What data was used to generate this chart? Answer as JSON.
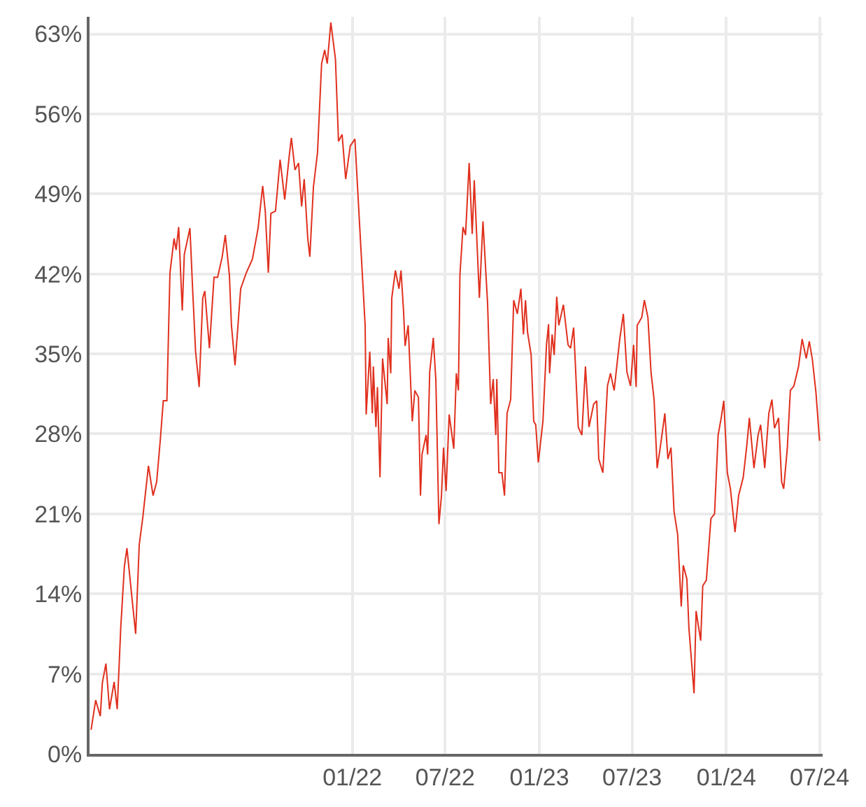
{
  "chart_data": {
    "type": "line",
    "x": [
      "2020-08-09",
      "2020-08-18",
      "2020-08-27",
      "2020-08-31",
      "2020-09-07",
      "2020-09-14",
      "2020-09-23",
      "2020-09-29",
      "2020-10-06",
      "2020-10-13",
      "2020-10-18",
      "2020-10-27",
      "2020-11-04",
      "2020-11-11",
      "2020-11-18",
      "2020-11-29",
      "2020-12-08",
      "2020-12-15",
      "2020-12-22",
      "2020-12-28",
      "2021-01-04",
      "2021-01-10",
      "2021-01-18",
      "2021-01-22",
      "2021-01-27",
      "2021-02-03",
      "2021-02-07",
      "2021-02-18",
      "2021-02-23",
      "2021-03-01",
      "2021-03-08",
      "2021-03-15",
      "2021-03-19",
      "2021-03-28",
      "2021-04-06",
      "2021-04-13",
      "2021-04-22",
      "2021-04-28",
      "2021-05-06",
      "2021-05-10",
      "2021-05-17",
      "2021-05-28",
      "2021-06-08",
      "2021-06-20",
      "2021-07-01",
      "2021-07-10",
      "2021-07-15",
      "2021-07-21",
      "2021-07-26",
      "2021-08-04",
      "2021-08-13",
      "2021-08-22",
      "2021-08-31",
      "2021-09-04",
      "2021-09-11",
      "2021-09-18",
      "2021-09-24",
      "2021-09-29",
      "2021-10-06",
      "2021-10-10",
      "2021-10-17",
      "2021-10-25",
      "2021-11-02",
      "2021-11-08",
      "2021-11-13",
      "2021-11-20",
      "2021-11-29",
      "2021-12-05",
      "2021-12-12",
      "2021-12-19",
      "2021-12-28",
      "2022-01-06",
      "2022-01-17",
      "2022-01-26",
      "2022-01-28",
      "2022-02-04",
      "2022-02-09",
      "2022-02-11",
      "2022-02-16",
      "2022-02-19",
      "2022-02-24",
      "2022-03-01",
      "2022-03-10",
      "2022-03-12",
      "2022-03-17",
      "2022-03-19",
      "2022-03-26",
      "2022-04-02",
      "2022-04-06",
      "2022-04-11",
      "2022-04-14",
      "2022-04-20",
      "2022-04-28",
      "2022-05-03",
      "2022-05-10",
      "2022-05-14",
      "2022-05-17",
      "2022-05-25",
      "2022-05-28",
      "2022-06-01",
      "2022-06-08",
      "2022-06-13",
      "2022-06-19",
      "2022-06-24",
      "2022-06-28",
      "2022-07-03",
      "2022-07-09",
      "2022-07-18",
      "2022-07-23",
      "2022-07-27",
      "2022-07-30",
      "2022-08-05",
      "2022-08-10",
      "2022-08-17",
      "2022-08-23",
      "2022-08-27",
      "2022-09-06",
      "2022-09-13",
      "2022-09-22",
      "2022-09-28",
      "2022-10-03",
      "2022-10-08",
      "2022-10-10",
      "2022-10-14",
      "2022-10-20",
      "2022-10-25",
      "2022-10-30",
      "2022-11-06",
      "2022-11-12",
      "2022-11-19",
      "2022-11-26",
      "2022-12-01",
      "2022-12-05",
      "2022-12-09",
      "2022-12-16",
      "2022-12-21",
      "2022-12-25",
      "2022-12-30",
      "2023-01-08",
      "2023-01-15",
      "2023-01-19",
      "2023-01-21",
      "2023-01-26",
      "2023-01-30",
      "2023-02-04",
      "2023-02-08",
      "2023-02-17",
      "2023-02-26",
      "2023-03-03",
      "2023-03-09",
      "2023-03-18",
      "2023-03-25",
      "2023-04-01",
      "2023-04-08",
      "2023-04-17",
      "2023-04-23",
      "2023-04-27",
      "2023-05-05",
      "2023-05-14",
      "2023-05-20",
      "2023-05-27",
      "2023-06-07",
      "2023-06-14",
      "2023-06-21",
      "2023-06-28",
      "2023-07-04",
      "2023-07-09",
      "2023-07-11",
      "2023-07-20",
      "2023-07-25",
      "2023-08-01",
      "2023-08-07",
      "2023-08-13",
      "2023-08-19",
      "2023-08-25",
      "2023-09-03",
      "2023-09-09",
      "2023-09-15",
      "2023-09-21",
      "2023-09-28",
      "2023-10-05",
      "2023-10-09",
      "2023-10-16",
      "2023-10-20",
      "2023-10-30",
      "2023-11-03",
      "2023-11-12",
      "2023-11-16",
      "2023-11-23",
      "2023-12-02",
      "2023-12-09",
      "2023-12-16",
      "2023-12-22",
      "2023-12-27",
      "2024-01-03",
      "2024-01-09",
      "2024-01-18",
      "2024-01-25",
      "2024-02-03",
      "2024-02-10",
      "2024-02-15",
      "2024-02-24",
      "2024-03-03",
      "2024-03-08",
      "2024-03-16",
      "2024-03-24",
      "2024-03-30",
      "2024-04-04",
      "2024-04-12",
      "2024-04-18",
      "2024-04-22",
      "2024-04-29",
      "2024-05-05",
      "2024-05-12",
      "2024-05-21",
      "2024-05-28",
      "2024-06-05",
      "2024-06-11",
      "2024-06-17",
      "2024-06-24",
      "2024-07-01"
    ],
    "series": [
      {
        "color": "#e0301e",
        "values": [
          2.1,
          4.7,
          3.3,
          6.2,
          7.9,
          3.9,
          6.3,
          3.9,
          11.1,
          16.4,
          18.0,
          14.0,
          10.5,
          18.3,
          20.7,
          25.2,
          22.6,
          23.8,
          27.4,
          30.9,
          30.9,
          42.1,
          45.1,
          44.1,
          46.1,
          38.8,
          43.7,
          46.0,
          40.9,
          35.2,
          32.1,
          39.9,
          40.5,
          35.5,
          41.7,
          41.7,
          43.5,
          45.4,
          41.9,
          37.5,
          34.0,
          40.7,
          42.1,
          43.3,
          46.0,
          49.7,
          47.5,
          42.1,
          47.3,
          47.5,
          52.0,
          48.5,
          52.4,
          53.9,
          51.1,
          51.7,
          47.9,
          50.3,
          45.1,
          43.5,
          49.6,
          52.6,
          60.4,
          61.6,
          60.4,
          64.0,
          60.8,
          53.6,
          54.2,
          50.3,
          53.2,
          53.8,
          44.8,
          37.5,
          29.7,
          35.2,
          29.8,
          33.9,
          28.6,
          32.1,
          24.2,
          34.6,
          30.6,
          36.4,
          33.3,
          39.9,
          42.3,
          40.7,
          42.3,
          38.7,
          35.7,
          37.5,
          29.1,
          31.8,
          31.2,
          22.6,
          26.2,
          27.9,
          26.2,
          33.4,
          36.4,
          32.7,
          20.1,
          22.6,
          26.8,
          23.0,
          29.7,
          26.7,
          33.3,
          31.8,
          41.9,
          46.1,
          45.4,
          51.7,
          45.5,
          50.2,
          39.9,
          46.6,
          39.4,
          30.6,
          32.8,
          27.9,
          32.8,
          24.6,
          24.6,
          22.6,
          29.8,
          31.0,
          39.7,
          38.5,
          40.7,
          36.7,
          39.7,
          36.9,
          34.9,
          29.1,
          28.8,
          25.5,
          29.1,
          35.8,
          37.6,
          33.3,
          36.7,
          34.9,
          40.0,
          37.5,
          39.3,
          35.8,
          35.5,
          37.3,
          28.6,
          27.9,
          33.9,
          28.6,
          30.6,
          30.9,
          25.8,
          24.6,
          32.2,
          33.3,
          31.8,
          36.3,
          38.5,
          33.4,
          32.2,
          35.8,
          32.1,
          37.5,
          38.2,
          39.7,
          38.2,
          33.4,
          31.0,
          25.0,
          26.8,
          29.8,
          25.8,
          26.8,
          21.2,
          19.2,
          12.9,
          16.5,
          15.3,
          11.0,
          5.3,
          12.5,
          9.9,
          14.7,
          15.2,
          20.6,
          21.0,
          27.9,
          29.4,
          30.9,
          24.6,
          23.2,
          19.4,
          22.6,
          24.2,
          27.0,
          29.4,
          25.0,
          27.9,
          28.8,
          25.0,
          29.8,
          31.0,
          28.5,
          29.4,
          23.8,
          23.2,
          26.7,
          31.8,
          32.2,
          33.9,
          36.3,
          34.6,
          36.1,
          34.5,
          31.6,
          27.4
        ]
      }
    ],
    "xlim": [
      "2020-08-06",
      "2024-07-07"
    ],
    "xticks": [
      {
        "value": "2022-01-01",
        "label": "01/22"
      },
      {
        "value": "2022-07-01",
        "label": "07/22"
      },
      {
        "value": "2023-01-01",
        "label": "01/23"
      },
      {
        "value": "2023-07-01",
        "label": "07/23"
      },
      {
        "value": "2024-01-01",
        "label": "01/24"
      },
      {
        "value": "2024-07-01",
        "label": "07/24"
      }
    ],
    "ylim": [
      0,
      64.5
    ],
    "yticks": [
      {
        "value": 0,
        "label": "0%"
      },
      {
        "value": 7,
        "label": "7%"
      },
      {
        "value": 14,
        "label": "14%"
      },
      {
        "value": 21,
        "label": "21%"
      },
      {
        "value": 28,
        "label": "28%"
      },
      {
        "value": 35,
        "label": "35%"
      },
      {
        "value": 42,
        "label": "42%"
      },
      {
        "value": 49,
        "label": "49%"
      },
      {
        "value": 56,
        "label": "56%"
      },
      {
        "value": 63,
        "label": "63%"
      }
    ],
    "grid": true
  }
}
